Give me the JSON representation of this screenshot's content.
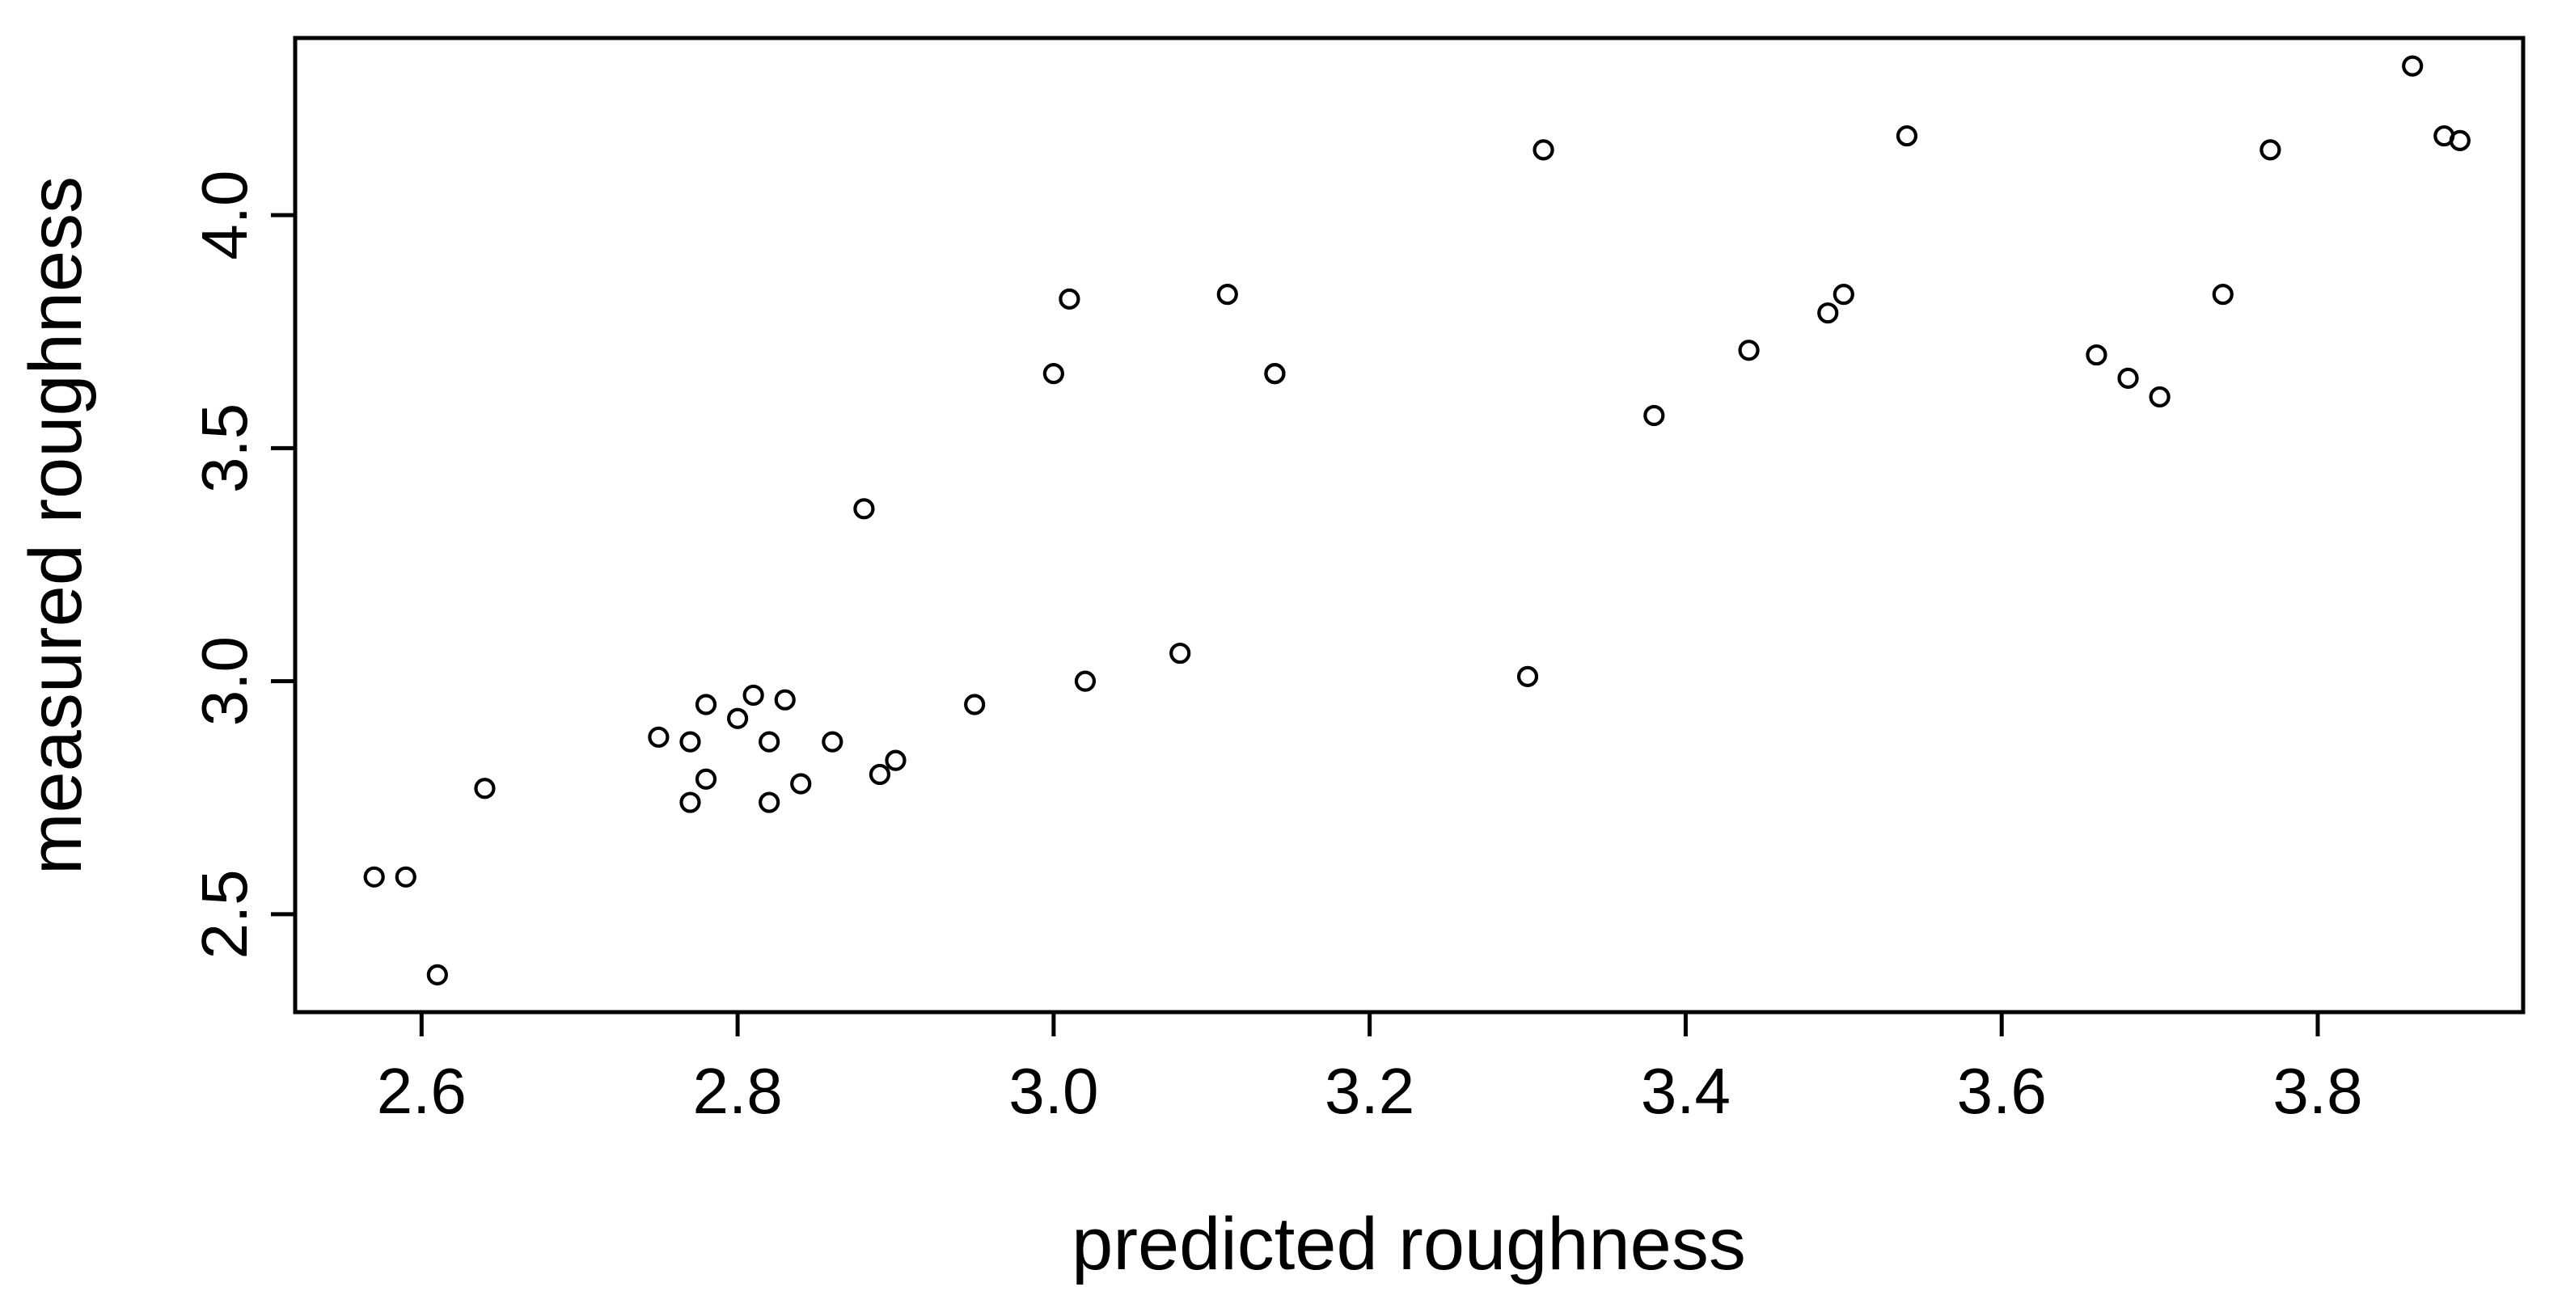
{
  "chart_data": {
    "type": "scatter",
    "xlabel": "predicted roughness",
    "ylabel": "measured roughness",
    "xlim": [
      2.52,
      3.93
    ],
    "ylim": [
      2.29,
      4.38
    ],
    "x_ticks": [
      2.6,
      2.8,
      3.0,
      3.2,
      3.4,
      3.6,
      3.8
    ],
    "x_tick_labels": [
      "2.6",
      "2.8",
      "3.0",
      "3.2",
      "3.4",
      "3.6",
      "3.8"
    ],
    "y_ticks": [
      2.5,
      3.0,
      3.5,
      4.0
    ],
    "y_tick_labels": [
      "2.5",
      "3.0",
      "3.5",
      "4.0"
    ],
    "grid": false,
    "marker": "open-circle",
    "colors": {
      "marker": "#000000",
      "background": "#ffffff"
    },
    "points": [
      {
        "x": 2.57,
        "y": 2.58
      },
      {
        "x": 2.59,
        "y": 2.58
      },
      {
        "x": 2.61,
        "y": 2.37
      },
      {
        "x": 2.64,
        "y": 2.77
      },
      {
        "x": 2.75,
        "y": 2.88
      },
      {
        "x": 2.77,
        "y": 2.87
      },
      {
        "x": 2.77,
        "y": 2.74
      },
      {
        "x": 2.78,
        "y": 2.79
      },
      {
        "x": 2.78,
        "y": 2.95
      },
      {
        "x": 2.8,
        "y": 2.92
      },
      {
        "x": 2.81,
        "y": 2.97
      },
      {
        "x": 2.82,
        "y": 2.87
      },
      {
        "x": 2.82,
        "y": 2.74
      },
      {
        "x": 2.83,
        "y": 2.96
      },
      {
        "x": 2.84,
        "y": 2.78
      },
      {
        "x": 2.86,
        "y": 2.87
      },
      {
        "x": 2.88,
        "y": 3.37
      },
      {
        "x": 2.89,
        "y": 2.8
      },
      {
        "x": 2.9,
        "y": 2.83
      },
      {
        "x": 2.95,
        "y": 2.95
      },
      {
        "x": 3.0,
        "y": 3.66
      },
      {
        "x": 3.01,
        "y": 3.82
      },
      {
        "x": 3.02,
        "y": 3.0
      },
      {
        "x": 3.08,
        "y": 3.06
      },
      {
        "x": 3.11,
        "y": 3.83
      },
      {
        "x": 3.14,
        "y": 3.66
      },
      {
        "x": 3.14,
        "y": 3.66
      },
      {
        "x": 3.3,
        "y": 3.01
      },
      {
        "x": 3.31,
        "y": 4.14
      },
      {
        "x": 3.38,
        "y": 3.57
      },
      {
        "x": 3.44,
        "y": 3.71
      },
      {
        "x": 3.49,
        "y": 3.79
      },
      {
        "x": 3.5,
        "y": 3.83
      },
      {
        "x": 3.54,
        "y": 4.17
      },
      {
        "x": 3.66,
        "y": 3.7
      },
      {
        "x": 3.68,
        "y": 3.65
      },
      {
        "x": 3.7,
        "y": 3.61
      },
      {
        "x": 3.74,
        "y": 3.83
      },
      {
        "x": 3.77,
        "y": 4.14
      },
      {
        "x": 3.86,
        "y": 4.32
      },
      {
        "x": 3.88,
        "y": 4.17
      },
      {
        "x": 3.89,
        "y": 4.16
      }
    ]
  }
}
